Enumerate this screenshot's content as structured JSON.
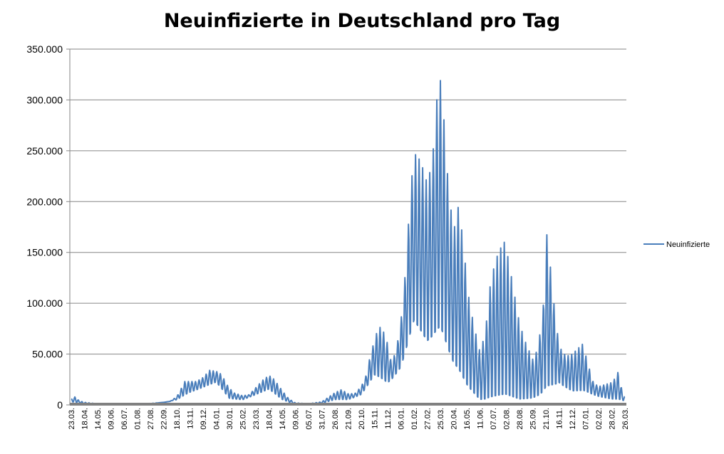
{
  "chart_data": {
    "type": "line",
    "title": "Neuinfizierte in Deutschland pro Tag",
    "xlabel": "",
    "ylabel": "",
    "ylim": [
      0,
      350000
    ],
    "y_ticks": [
      "0",
      "50.000",
      "100.000",
      "150.000",
      "200.000",
      "250.000",
      "300.000",
      "350.000"
    ],
    "x_tick_labels": [
      "23.03.",
      "18.04.",
      "14.05.",
      "09.06.",
      "06.07.",
      "01.08.",
      "27.08.",
      "22.09.",
      "18.10.",
      "13.11.",
      "09.12.",
      "04.01.",
      "30.01.",
      "25.02.",
      "23.03.",
      "18.04.",
      "14.05.",
      "09.06.",
      "05.07.",
      "31.07.",
      "26.08.",
      "21.09.",
      "20.10.",
      "15.11.",
      "11.12.",
      "06.01.",
      "01.02.",
      "27.02.",
      "25.03.",
      "20.04.",
      "16.05.",
      "11.06.",
      "07.07.",
      "02.08.",
      "28.08.",
      "25.09.",
      "21.10.",
      "16.11.",
      "12.12.",
      "07.01.",
      "02.02.",
      "28.02.",
      "26.03."
    ],
    "grid": true,
    "legend_position": "right",
    "series": [
      {
        "name": "Neuinfizierte",
        "color": "#4a7ebb",
        "envelope_high": [
          [
            0,
            6000
          ],
          [
            0.3,
            8000
          ],
          [
            0.6,
            4000
          ],
          [
            1,
            2500
          ],
          [
            2,
            1200
          ],
          [
            4,
            800
          ],
          [
            5,
            900
          ],
          [
            6,
            1500
          ],
          [
            7,
            2500
          ],
          [
            7.5,
            3500
          ],
          [
            8,
            8000
          ],
          [
            8.3,
            15000
          ],
          [
            8.6,
            23000
          ],
          [
            9,
            23000
          ],
          [
            9.5,
            23000
          ],
          [
            10,
            27000
          ],
          [
            10.5,
            34000
          ],
          [
            11,
            33000
          ],
          [
            11.4,
            30000
          ],
          [
            11.8,
            20000
          ],
          [
            12.3,
            12000
          ],
          [
            13,
            9000
          ],
          [
            13.5,
            10000
          ],
          [
            14,
            17000
          ],
          [
            14.5,
            24000
          ],
          [
            15,
            29000
          ],
          [
            15.4,
            25000
          ],
          [
            16,
            14000
          ],
          [
            16.5,
            6000
          ],
          [
            17,
            2000
          ],
          [
            18,
            1200
          ],
          [
            19,
            3000
          ],
          [
            20,
            12000
          ],
          [
            20.5,
            15000
          ],
          [
            21,
            11000
          ],
          [
            21.5,
            11000
          ],
          [
            22,
            18000
          ],
          [
            22.4,
            30000
          ],
          [
            22.7,
            50000
          ],
          [
            23,
            63000
          ],
          [
            23.3,
            77000
          ],
          [
            23.6,
            75000
          ],
          [
            24,
            60000
          ],
          [
            24.3,
            40000
          ],
          [
            24.7,
            57000
          ],
          [
            25.1,
            92000
          ],
          [
            25.4,
            140000
          ],
          [
            25.7,
            204000
          ],
          [
            26,
            248000
          ],
          [
            26.5,
            240000
          ],
          [
            27,
            218000
          ],
          [
            27.4,
            240000
          ],
          [
            27.7,
            298000
          ],
          [
            28,
            319000
          ],
          [
            28.3,
            276000
          ],
          [
            28.6,
            215000
          ],
          [
            29,
            170000
          ],
          [
            29.4,
            198000
          ],
          [
            29.8,
            150000
          ],
          [
            30.2,
            100000
          ],
          [
            30.6,
            75000
          ],
          [
            31,
            52000
          ],
          [
            31.4,
            70000
          ],
          [
            31.8,
            120000
          ],
          [
            32.2,
            143000
          ],
          [
            32.6,
            155000
          ],
          [
            32.9,
            161000
          ],
          [
            33.2,
            140000
          ],
          [
            33.6,
            110000
          ],
          [
            34,
            80000
          ],
          [
            34.5,
            60000
          ],
          [
            35,
            45000
          ],
          [
            35.4,
            55000
          ],
          [
            35.6,
            75000
          ],
          [
            35.8,
            95000
          ],
          [
            36,
            175000
          ],
          [
            36.2,
            155000
          ],
          [
            36.5,
            115000
          ],
          [
            36.8,
            75000
          ],
          [
            37.2,
            52000
          ],
          [
            37.6,
            48000
          ],
          [
            38,
            50000
          ],
          [
            38.4,
            55000
          ],
          [
            38.8,
            60000
          ],
          [
            39.2,
            40000
          ],
          [
            39.6,
            22000
          ],
          [
            40,
            18000
          ],
          [
            40.5,
            20000
          ],
          [
            41,
            22000
          ],
          [
            41.3,
            27000
          ],
          [
            41.5,
            33000
          ],
          [
            41.8,
            12000
          ],
          [
            42,
            8000
          ]
        ],
        "envelope_low": [
          [
            0,
            3000
          ],
          [
            1,
            1000
          ],
          [
            2,
            500
          ],
          [
            4,
            300
          ],
          [
            6,
            700
          ],
          [
            8,
            5000
          ],
          [
            9,
            12000
          ],
          [
            10,
            17000
          ],
          [
            11,
            22000
          ],
          [
            12,
            6000
          ],
          [
            13,
            5000
          ],
          [
            14,
            10000
          ],
          [
            15,
            15000
          ],
          [
            16,
            5000
          ],
          [
            17,
            500
          ],
          [
            18,
            600
          ],
          [
            19,
            1500
          ],
          [
            20,
            5000
          ],
          [
            21,
            5000
          ],
          [
            22,
            10000
          ],
          [
            23,
            28000
          ],
          [
            24,
            20000
          ],
          [
            25,
            35000
          ],
          [
            26,
            75000
          ],
          [
            27,
            55000
          ],
          [
            28,
            65000
          ],
          [
            29,
            35000
          ],
          [
            30,
            15000
          ],
          [
            31,
            3000
          ],
          [
            32,
            2000
          ],
          [
            33,
            3000
          ],
          [
            34,
            2000
          ],
          [
            35,
            5000
          ],
          [
            36,
            10000
          ],
          [
            37,
            20000
          ],
          [
            38,
            12000
          ],
          [
            39,
            12000
          ],
          [
            40,
            8000
          ],
          [
            41,
            5000
          ],
          [
            42,
            4000
          ]
        ]
      }
    ]
  }
}
